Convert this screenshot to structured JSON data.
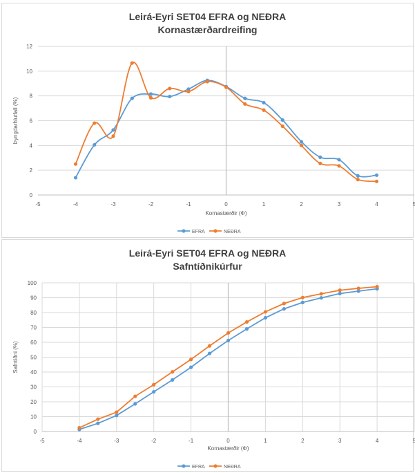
{
  "colors": {
    "EFRA": "#5b9bd5",
    "NEDRA": "#ed7d31",
    "grid": "#d9d9d9",
    "axis": "#bfbfbf",
    "zero_axis": "#bfbfbf"
  },
  "chart_data": [
    {
      "type": "line",
      "title": "Leirá-Eyri SET04 EFRA og NEÐRA",
      "subtitle": "Kornastærðardreifing",
      "xlabel": "Kornastærðir (Φ)",
      "ylabel": "Þyngdarhlutfall (%)",
      "xlim": [
        -5,
        5
      ],
      "ylim": [
        0,
        12
      ],
      "xticks": [
        "-5",
        "-4",
        "-3",
        "-2",
        "-1",
        "0",
        "1",
        "2",
        "3",
        "4",
        "5"
      ],
      "yticks": [
        "0",
        "2",
        "4",
        "6",
        "8",
        "10",
        "12"
      ],
      "grid": "horizontal",
      "smooth": true,
      "legend_position": "bottom",
      "x": [
        -4,
        -3.5,
        -3,
        -2.5,
        -2,
        -1.5,
        -1,
        -0.5,
        0,
        0.5,
        1,
        1.5,
        2,
        2.5,
        3,
        3.5,
        4
      ],
      "series": [
        {
          "name": "EFRA",
          "values": [
            1.4,
            4.05,
            5.25,
            7.8,
            8.15,
            7.95,
            8.55,
            9.25,
            8.75,
            7.8,
            7.45,
            6.05,
            4.3,
            3.05,
            2.85,
            1.55,
            1.6
          ]
        },
        {
          "name": "NEÐRA",
          "values": [
            2.5,
            5.8,
            4.75,
            10.65,
            7.85,
            8.6,
            8.35,
            9.15,
            8.7,
            7.35,
            6.85,
            5.55,
            4.0,
            2.55,
            2.35,
            1.25,
            1.1
          ]
        }
      ]
    },
    {
      "type": "line",
      "title": "Leirá-Eyri SET04 EFRA og NEÐRA",
      "subtitle": "Safntíðnikúrfur",
      "xlabel": "Kornastærðir (Φ)",
      "ylabel": "Safntíðni (%)",
      "xlim": [
        -5,
        5
      ],
      "ylim": [
        0,
        100
      ],
      "xticks": [
        "-5",
        "-4",
        "-3",
        "-2",
        "-1",
        "0",
        "1",
        "2",
        "3",
        "4",
        "5"
      ],
      "yticks": [
        "0",
        "10",
        "20",
        "30",
        "40",
        "50",
        "60",
        "70",
        "80",
        "90",
        "100"
      ],
      "grid": "both",
      "smooth": false,
      "legend_position": "bottom",
      "x": [
        -4,
        -3.5,
        -3,
        -2.5,
        -2,
        -1.5,
        -1,
        -0.5,
        0,
        0.5,
        1,
        1.5,
        2,
        2.5,
        3,
        3.5,
        4
      ],
      "series": [
        {
          "name": "EFRA",
          "values": [
            1.4,
            5.5,
            10.8,
            18.6,
            26.7,
            34.7,
            43.2,
            52.5,
            61.2,
            69.0,
            76.5,
            82.5,
            86.8,
            89.9,
            92.8,
            94.4,
            96.0
          ]
        },
        {
          "name": "NEÐRA",
          "values": [
            2.5,
            8.3,
            13.0,
            23.7,
            31.5,
            40.1,
            48.5,
            57.6,
            66.3,
            73.7,
            80.5,
            86.1,
            90.1,
            92.6,
            95.0,
            96.3,
            97.4
          ]
        }
      ]
    }
  ]
}
